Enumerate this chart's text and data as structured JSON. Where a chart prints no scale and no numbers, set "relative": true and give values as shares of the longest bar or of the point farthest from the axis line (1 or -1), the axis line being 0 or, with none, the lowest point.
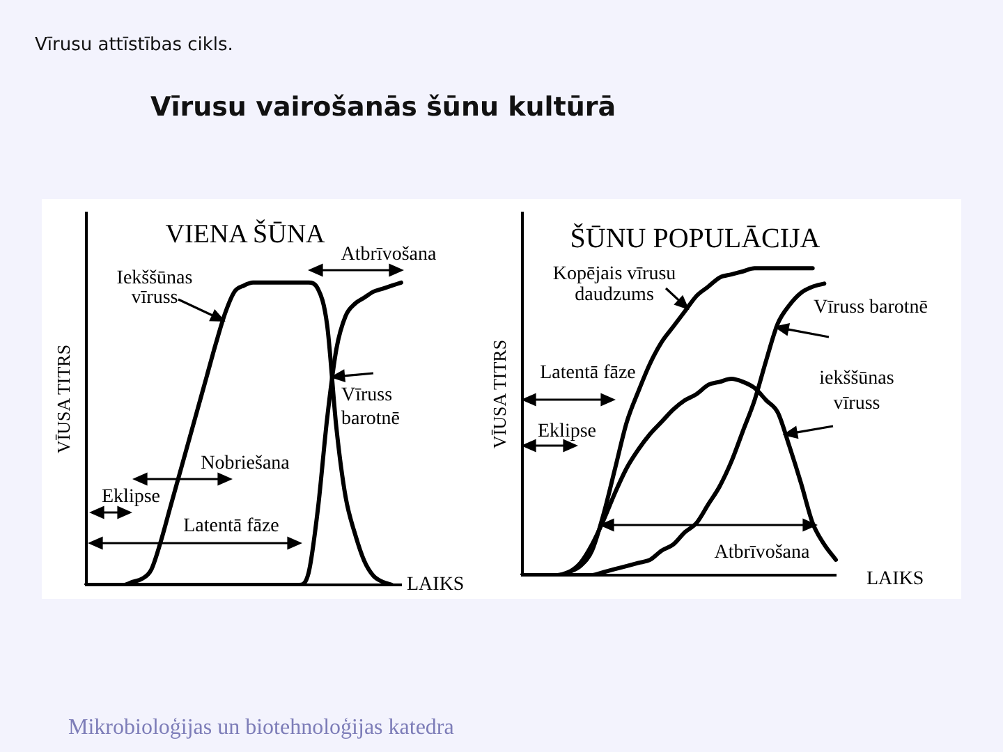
{
  "chart_data": [
    {
      "type": "other",
      "title": "Vīrusu vairošanās šūnu kultūrā",
      "annotations": [
        "Vīrusu attīstības cikls.",
        "Mikrobioloģijas un biotehnoloģijas katedra"
      ]
    },
    {
      "type": "line",
      "title": "VIENA ŠŪNA",
      "ylabel": "VĪUSA TITRS",
      "xlabel": "LAIKS",
      "relative": true,
      "marker": "none",
      "categories": [
        null,
        null,
        null,
        null,
        null,
        null,
        null,
        null,
        null,
        null,
        null,
        null,
        null,
        null,
        null,
        null,
        null,
        null,
        null,
        null,
        null,
        null,
        null,
        null,
        null,
        null,
        null,
        null,
        null,
        null,
        null,
        null,
        null,
        null,
        null
      ],
      "series": [
        {
          "name": "Iekššūnas vīruss",
          "color": "#000000",
          "values": [
            0,
            0,
            0,
            0,
            0,
            0.01,
            0.02,
            0.05,
            0.14,
            0.25,
            0.36,
            0.47,
            0.58,
            0.69,
            0.8,
            0.9,
            0.97,
            0.99,
            1,
            1,
            1,
            1,
            1,
            1,
            1,
            0.98,
            0.86,
            0.52,
            0.29,
            0.17,
            0.08,
            0.03,
            0.01,
            0,
            null
          ]
        },
        {
          "name": "Vīruss barotnē",
          "color": "#000000",
          "values": [
            0,
            0,
            0,
            0,
            0,
            0,
            0,
            0,
            0,
            0,
            0,
            0,
            0,
            0,
            0,
            0,
            0,
            0,
            0,
            0,
            0,
            0,
            0,
            0,
            0.04,
            0.25,
            0.55,
            0.78,
            0.89,
            0.93,
            0.95,
            0.97,
            0.98,
            0.99,
            1
          ]
        }
      ],
      "annotations": [
        "Atbrīvošana",
        "Nobriešana",
        "Eklipse",
        "Latentā fāze"
      ]
    },
    {
      "type": "line",
      "title": "ŠŪNU POPULĀCIJA",
      "ylabel": "VĪUSA TITRS",
      "xlabel": "LAIKS",
      "relative": true,
      "marker": "none",
      "categories": [
        null,
        null,
        null,
        null,
        null,
        null,
        null,
        null,
        null,
        null,
        null,
        null,
        null,
        null,
        null,
        null,
        null,
        null,
        null,
        null,
        null,
        null,
        null,
        null,
        null,
        null,
        null,
        null
      ],
      "series": [
        {
          "name": "Kopējais vīrusu daudzums",
          "color": "#000000",
          "values": [
            0,
            0,
            0,
            0,
            0.01,
            0.03,
            0.08,
            0.2,
            0.35,
            0.5,
            0.6,
            0.69,
            0.76,
            0.81,
            0.86,
            0.91,
            0.94,
            0.97,
            0.98,
            0.99,
            1,
            1,
            1,
            1,
            1,
            1,
            null,
            null
          ]
        },
        {
          "name": "Vīruss barotnē",
          "color": "#000000",
          "values": [
            0,
            0,
            0,
            0,
            0,
            0,
            0,
            0.01,
            0.02,
            0.03,
            0.04,
            0.05,
            0.08,
            0.1,
            0.14,
            0.17,
            0.23,
            0.29,
            0.37,
            0.47,
            0.57,
            0.7,
            0.82,
            0.88,
            0.92,
            0.94,
            0.95,
            null
          ]
        },
        {
          "name": "iekššūnas vīruss",
          "color": "#000000",
          "values": [
            0,
            0,
            0,
            0,
            0.01,
            0.04,
            0.1,
            0.18,
            0.27,
            0.35,
            0.41,
            0.46,
            0.5,
            0.54,
            0.57,
            0.59,
            0.62,
            0.63,
            0.64,
            0.63,
            0.61,
            0.57,
            0.53,
            0.42,
            0.3,
            0.17,
            0.1,
            0.05
          ]
        }
      ],
      "annotations": [
        "Latentā fāze",
        "Eklipse",
        "Atbrīvošana"
      ]
    }
  ]
}
